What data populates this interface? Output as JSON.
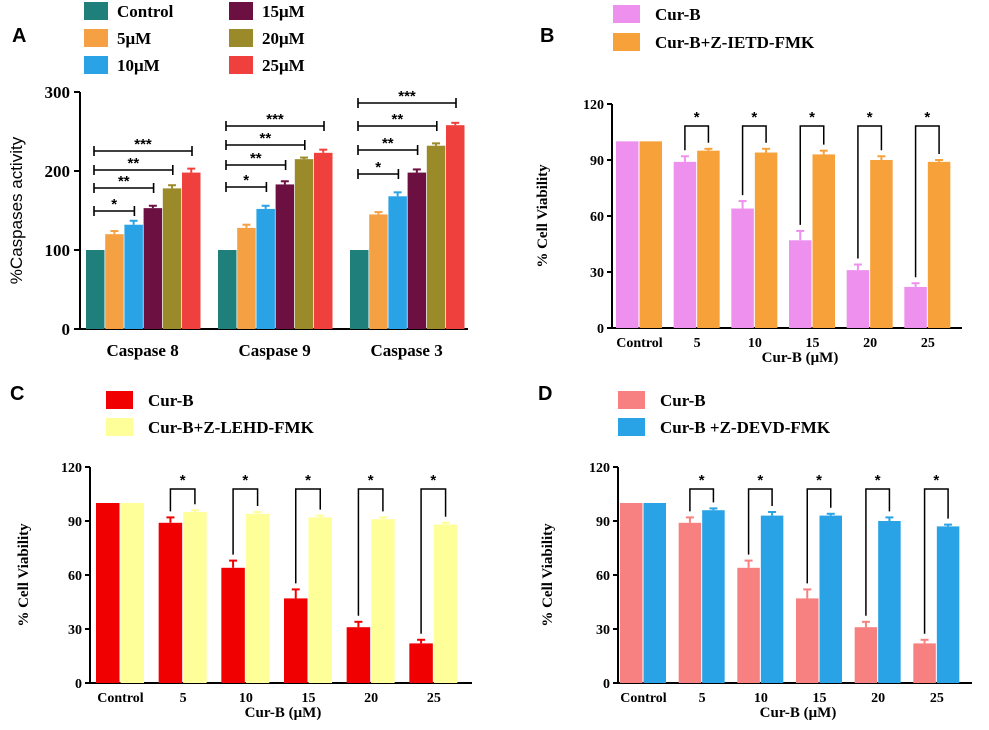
{
  "chart_data": [
    {
      "panel": "A",
      "type": "bar",
      "categories": [
        "Caspase 8",
        "Caspase 9",
        "Caspase 3"
      ],
      "ylabel": "%Caspases activity",
      "xlabel": "",
      "ylim": [
        0,
        300
      ],
      "yticks": [
        "0",
        "100",
        "200",
        "300"
      ],
      "series": [
        {
          "name": "Control",
          "color": "#1f7f7a",
          "values": [
            100,
            100,
            100
          ],
          "errors": [
            0,
            0,
            0
          ]
        },
        {
          "name": "5μM",
          "color": "#f5a043",
          "values": [
            120,
            128,
            145
          ],
          "errors": [
            4,
            4,
            3
          ]
        },
        {
          "name": "10μM",
          "color": "#2aa3e6",
          "values": [
            132,
            152,
            168
          ],
          "errors": [
            5,
            4,
            5
          ]
        },
        {
          "name": "15μM",
          "color": "#6b1040",
          "values": [
            153,
            183,
            198
          ],
          "errors": [
            3,
            4,
            4
          ]
        },
        {
          "name": "20μM",
          "color": "#9a8a2a",
          "values": [
            178,
            215,
            232
          ],
          "errors": [
            4,
            2,
            3
          ]
        },
        {
          "name": "25μM",
          "color": "#f0403e",
          "values": [
            198,
            223,
            258
          ],
          "errors": [
            5,
            4,
            3
          ]
        }
      ],
      "significance": [
        {
          "category": 0,
          "from": 0,
          "to": 2,
          "label": "*"
        },
        {
          "category": 0,
          "from": 0,
          "to": 3,
          "label": "**"
        },
        {
          "category": 0,
          "from": 0,
          "to": 4,
          "label": "**"
        },
        {
          "category": 0,
          "from": 0,
          "to": 5,
          "label": "***"
        },
        {
          "category": 1,
          "from": 0,
          "to": 2,
          "label": "*"
        },
        {
          "category": 1,
          "from": 0,
          "to": 3,
          "label": "**"
        },
        {
          "category": 1,
          "from": 0,
          "to": 4,
          "label": "**"
        },
        {
          "category": 1,
          "from": 0,
          "to": 5,
          "label": "***"
        },
        {
          "category": 2,
          "from": 0,
          "to": 2,
          "label": "*"
        },
        {
          "category": 2,
          "from": 0,
          "to": 3,
          "label": "**"
        },
        {
          "category": 2,
          "from": 0,
          "to": 4,
          "label": "**"
        },
        {
          "category": 2,
          "from": 0,
          "to": 5,
          "label": "***"
        }
      ]
    },
    {
      "panel": "B",
      "type": "bar",
      "categories": [
        "Control",
        "5",
        "10",
        "15",
        "20",
        "25"
      ],
      "xlabel": "Cur-B (μM)",
      "ylabel": "% Cell Viability",
      "ylim": [
        0,
        120
      ],
      "yticks": [
        "0",
        "30",
        "60",
        "90",
        "120"
      ],
      "series": [
        {
          "name": "Cur-B",
          "color": "#ee90ee",
          "values": [
            100,
            89,
            64,
            47,
            31,
            22
          ],
          "errors": [
            0,
            3,
            4,
            5,
            3,
            2
          ]
        },
        {
          "name": "Cur-B+Z-IETD-FMK",
          "color": "#f7a13a",
          "values": [
            100,
            95,
            94,
            93,
            90,
            89
          ],
          "errors": [
            0,
            1,
            2,
            2,
            2,
            1
          ]
        }
      ],
      "significance_label": "*"
    },
    {
      "panel": "C",
      "type": "bar",
      "categories": [
        "Control",
        "5",
        "10",
        "15",
        "20",
        "25"
      ],
      "xlabel": "Cur-B (μM)",
      "ylabel": "% Cell Viability",
      "ylim": [
        0,
        120
      ],
      "yticks": [
        "0",
        "30",
        "60",
        "90",
        "120"
      ],
      "series": [
        {
          "name": "Cur-B",
          "color": "#f00000",
          "values": [
            100,
            89,
            64,
            47,
            31,
            22
          ],
          "errors": [
            0,
            3,
            4,
            5,
            3,
            2
          ]
        },
        {
          "name": "Cur-B+Z-LEHD-FMK",
          "color": "#ffff99",
          "values": [
            100,
            95,
            94,
            92,
            91,
            88
          ],
          "errors": [
            0,
            1,
            1,
            1,
            1,
            1
          ]
        }
      ],
      "significance_label": "*"
    },
    {
      "panel": "D",
      "type": "bar",
      "categories": [
        "Control",
        "5",
        "10",
        "15",
        "20",
        "25"
      ],
      "xlabel": "Cur-B (μM)",
      "ylabel": "% Cell Viability",
      "ylim": [
        0,
        120
      ],
      "yticks": [
        "0",
        "30",
        "60",
        "90",
        "120"
      ],
      "series": [
        {
          "name": "Cur-B",
          "color": "#f78080",
          "values": [
            100,
            89,
            64,
            47,
            31,
            22
          ],
          "errors": [
            0,
            3,
            4,
            5,
            3,
            2
          ]
        },
        {
          "name": "Cur-B +Z-DEVD-FMK",
          "color": "#2aa3e6",
          "values": [
            100,
            96,
            93,
            93,
            90,
            87
          ],
          "errors": [
            0,
            1,
            2,
            1,
            2,
            1
          ]
        }
      ],
      "significance_label": "*"
    }
  ]
}
